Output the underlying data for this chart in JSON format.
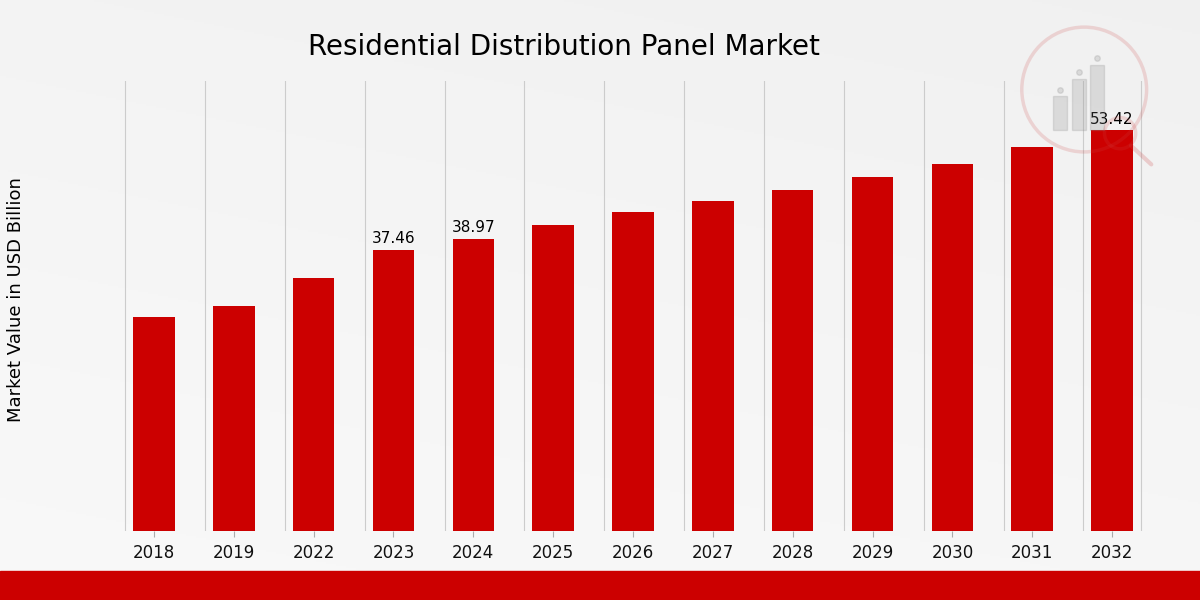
{
  "title": "Residential Distribution Panel Market",
  "ylabel": "Market Value in USD Billion",
  "categories": [
    "2018",
    "2019",
    "2022",
    "2023",
    "2024",
    "2025",
    "2026",
    "2027",
    "2028",
    "2029",
    "2030",
    "2031",
    "2032"
  ],
  "values": [
    28.5,
    30.0,
    33.8,
    37.46,
    38.97,
    40.8,
    42.5,
    44.0,
    45.5,
    47.2,
    49.0,
    51.2,
    53.42
  ],
  "labeled_indices": [
    3,
    4,
    12
  ],
  "labels": [
    "37.46",
    "38.97",
    "53.42"
  ],
  "bar_color": "#cc0000",
  "grid_color": "#c8c8c8",
  "title_fontsize": 20,
  "ylabel_fontsize": 13,
  "tick_fontsize": 12,
  "label_fontsize": 11,
  "ylim": [
    0,
    60
  ],
  "footer_color": "#cc0000",
  "bg_light": "#e8e8e8",
  "bg_dark": "#c8c8c8"
}
